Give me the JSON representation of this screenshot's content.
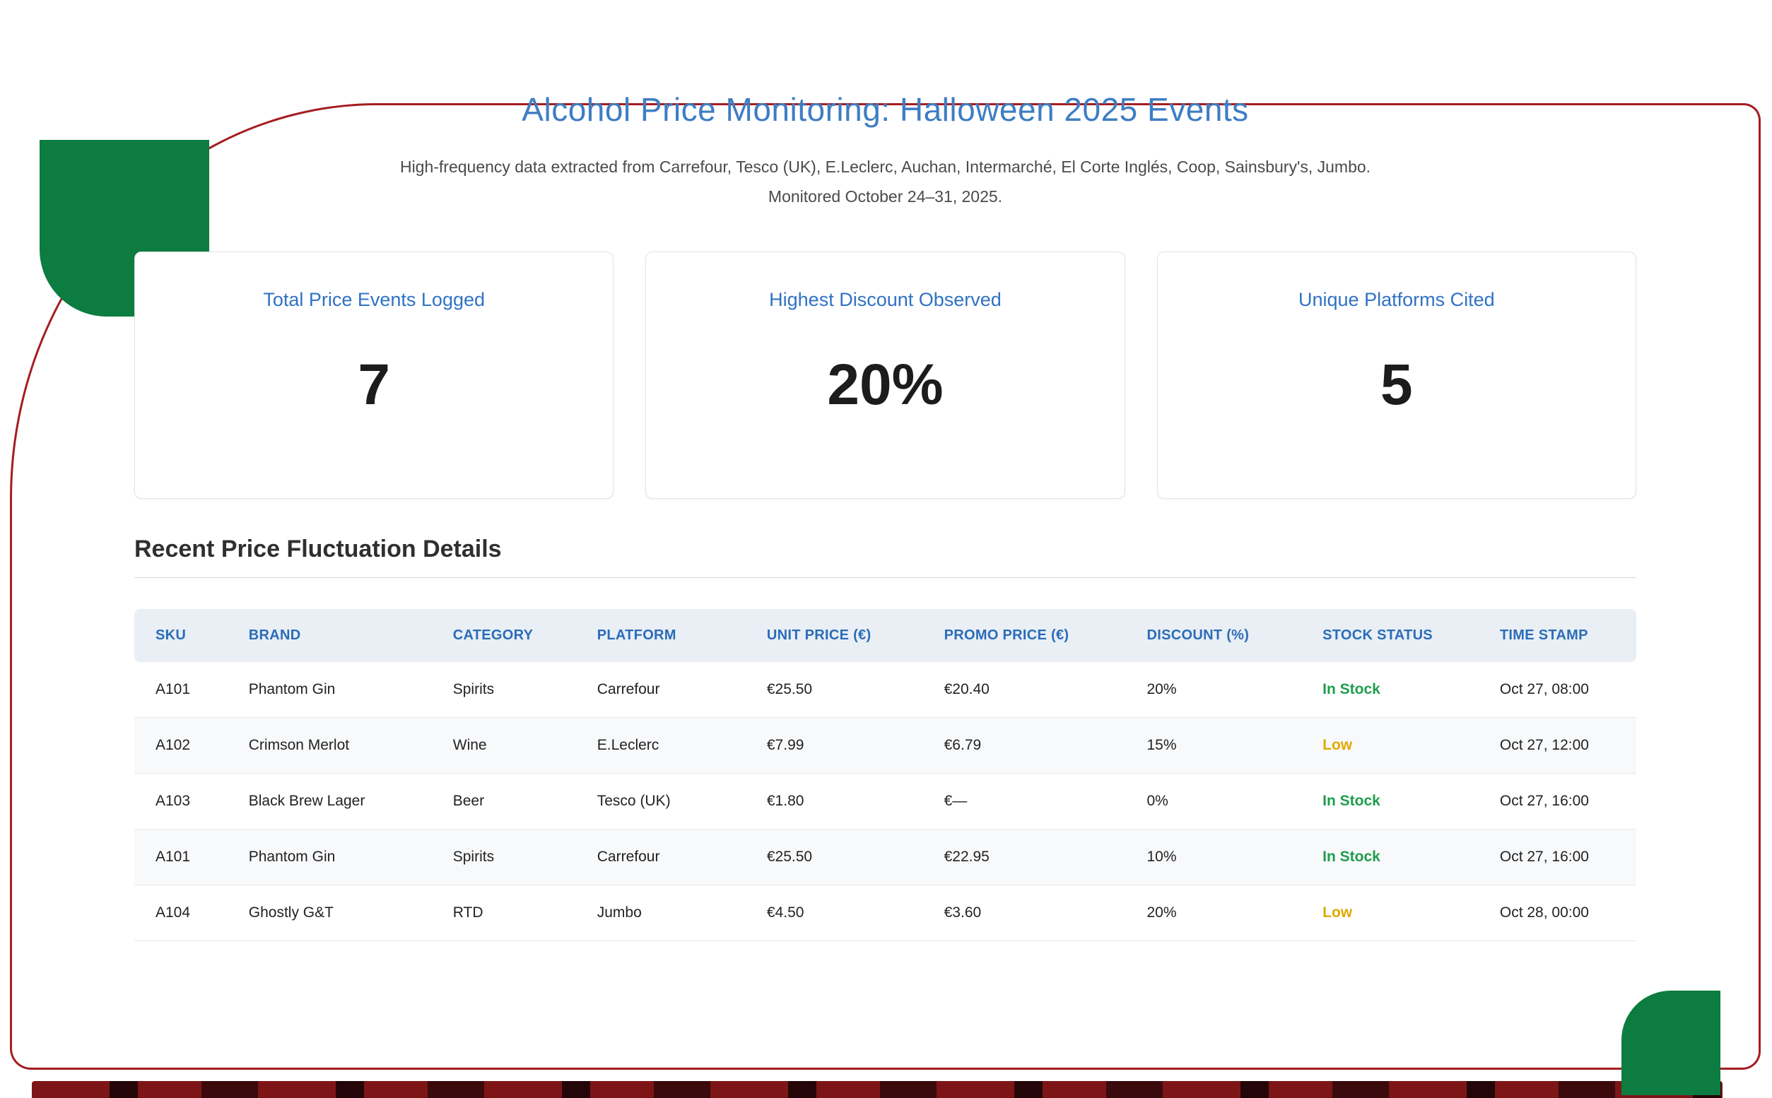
{
  "colors": {
    "frame_red": "#a41d21",
    "accent_green": "#0c7c40",
    "title_blue": "#3e7dc4",
    "table_header_blue": "#2b6cb8",
    "stock_in_stock_green": "#1f9d4d",
    "stock_low_amber": "#e0a800"
  },
  "header": {
    "title": "Alcohol Price Monitoring: Halloween 2025 Events",
    "subtitle_line1": "High-frequency data extracted from Carrefour, Tesco (UK), E.Leclerc, Auchan, Intermarché, El Corte Inglés, Coop, Sainsbury's, Jumbo.",
    "subtitle_line2": "Monitored October 24–31, 2025."
  },
  "stats": [
    {
      "label": "Total Price Events Logged",
      "value": "7"
    },
    {
      "label": "Highest Discount Observed",
      "value": "20%"
    },
    {
      "label": "Unique Platforms Cited",
      "value": "5"
    }
  ],
  "table": {
    "section_title": "Recent Price Fluctuation Details",
    "columns": [
      "SKU",
      "BRAND",
      "CATEGORY",
      "PLATFORM",
      "UNIT PRICE (€)",
      "PROMO PRICE (€)",
      "DISCOUNT (%)",
      "STOCK STATUS",
      "TIME STAMP"
    ],
    "rows": [
      {
        "sku": "A101",
        "brand": "Phantom Gin",
        "category": "Spirits",
        "platform": "Carrefour",
        "unit_price": "€25.50",
        "promo_price": "€20.40",
        "discount": "20%",
        "stock_status": "In Stock",
        "stock_color": "#1f9d4d",
        "timestamp": "Oct 27, 08:00"
      },
      {
        "sku": "A102",
        "brand": "Crimson Merlot",
        "category": "Wine",
        "platform": "E.Leclerc",
        "unit_price": "€7.99",
        "promo_price": "€6.79",
        "discount": "15%",
        "stock_status": "Low",
        "stock_color": "#e0a800",
        "timestamp": "Oct 27, 12:00"
      },
      {
        "sku": "A103",
        "brand": "Black Brew Lager",
        "category": "Beer",
        "platform": "Tesco (UK)",
        "unit_price": "€1.80",
        "promo_price": "€—",
        "discount": "0%",
        "stock_status": "In Stock",
        "stock_color": "#1f9d4d",
        "timestamp": "Oct 27, 16:00"
      },
      {
        "sku": "A101",
        "brand": "Phantom Gin",
        "category": "Spirits",
        "platform": "Carrefour",
        "unit_price": "€25.50",
        "promo_price": "€22.95",
        "discount": "10%",
        "stock_status": "In Stock",
        "stock_color": "#1f9d4d",
        "timestamp": "Oct 27, 16:00"
      },
      {
        "sku": "A104",
        "brand": "Ghostly G&T",
        "category": "RTD",
        "platform": "Jumbo",
        "unit_price": "€4.50",
        "promo_price": "€3.60",
        "discount": "20%",
        "stock_status": "Low",
        "stock_color": "#e0a800",
        "timestamp": "Oct 28, 00:00"
      }
    ]
  }
}
